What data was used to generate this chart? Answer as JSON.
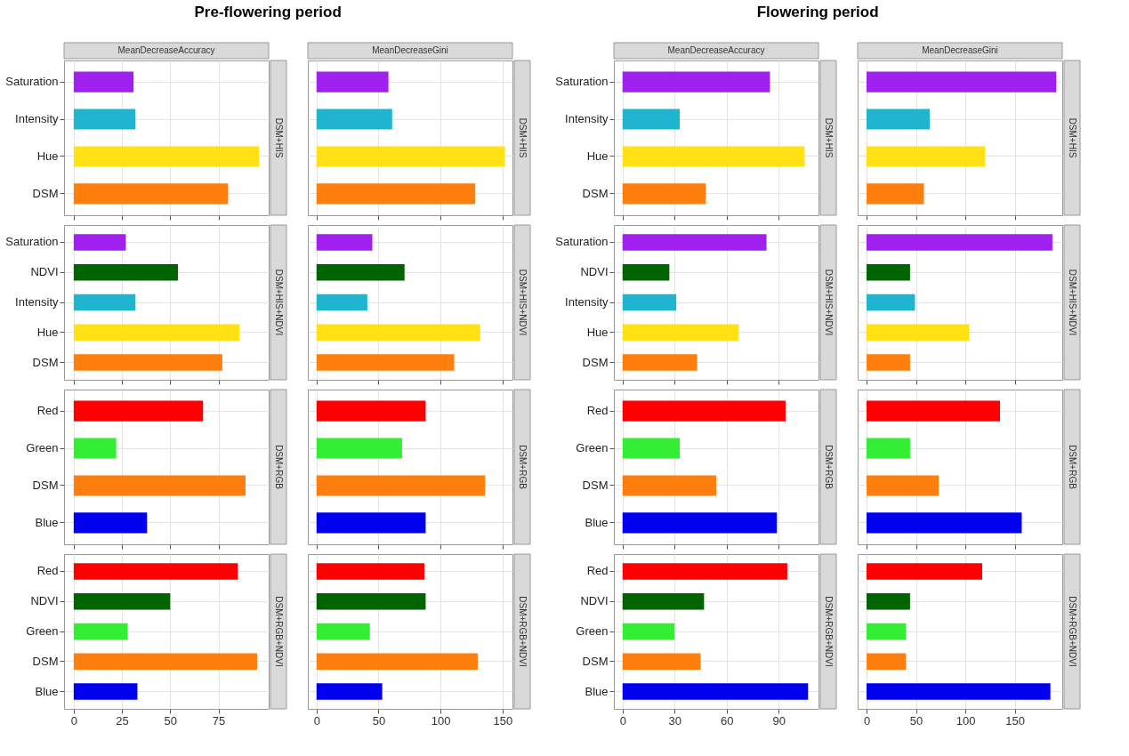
{
  "chart_data": [
    {
      "type": "bar",
      "orientation": "horizontal",
      "title": "Pre-flowering period",
      "subtitle": "MeanDecreaseAccuracy",
      "y2label": "DSM+HIS",
      "categories": [
        "Saturation",
        "Intensity",
        "Hue",
        "DSM"
      ],
      "values": [
        31,
        32,
        96,
        80
      ],
      "colors": [
        "#a020f0",
        "#1fb5d0",
        "#ffe114",
        "#ff7f0e"
      ],
      "xlim": [
        -5,
        101
      ],
      "xticks": [
        0,
        25,
        50,
        75
      ],
      "grid": true,
      "tick_labels": "y"
    },
    {
      "type": "bar",
      "orientation": "horizontal",
      "subtitle": "MeanDecreaseGini",
      "y2label": "DSM+HIS",
      "categories": [
        "Saturation",
        "Intensity",
        "Hue",
        "DSM"
      ],
      "values": [
        58,
        61,
        152,
        128
      ],
      "colors": [
        "#a020f0",
        "#1fb5d0",
        "#ffe114",
        "#ff7f0e"
      ],
      "xlim": [
        -7,
        158
      ],
      "xticks": [
        0,
        50,
        100,
        150
      ],
      "grid": true,
      "tick_labels": false
    },
    {
      "type": "bar",
      "orientation": "horizontal",
      "title": "Flowering period",
      "subtitle": "MeanDecreaseAccuracy",
      "y2label": "DSM+HIS",
      "categories": [
        "Saturation",
        "Intensity",
        "Hue",
        "DSM"
      ],
      "values": [
        85,
        33,
        105,
        48
      ],
      "colors": [
        "#a020f0",
        "#1fb5d0",
        "#ffe114",
        "#ff7f0e"
      ],
      "xlim": [
        -5,
        113
      ],
      "xticks": [
        0,
        30,
        60,
        90
      ],
      "grid": true,
      "tick_labels": "y"
    },
    {
      "type": "bar",
      "orientation": "horizontal",
      "subtitle": "MeanDecreaseGini",
      "y2label": "DSM+HIS",
      "categories": [
        "Saturation",
        "Intensity",
        "Hue",
        "DSM"
      ],
      "values": [
        192,
        64,
        120,
        58
      ],
      "colors": [
        "#a020f0",
        "#1fb5d0",
        "#ffe114",
        "#ff7f0e"
      ],
      "xlim": [
        -9,
        198
      ],
      "xticks": [
        0,
        50,
        100,
        150
      ],
      "grid": true,
      "tick_labels": false
    },
    {
      "type": "bar",
      "orientation": "horizontal",
      "y2label": "DSM+HIS+NDVI",
      "categories": [
        "Saturation",
        "NDVI",
        "Intensity",
        "Hue",
        "DSM"
      ],
      "values": [
        27,
        54,
        32,
        86,
        77
      ],
      "colors": [
        "#a020f0",
        "#006400",
        "#1fb5d0",
        "#ffe114",
        "#ff7f0e"
      ],
      "xlim": [
        -5,
        101
      ],
      "xticks": [
        0,
        25,
        50,
        75
      ],
      "grid": true,
      "tick_labels": "y"
    },
    {
      "type": "bar",
      "orientation": "horizontal",
      "y2label": "DSM+HIS+NDVI",
      "categories": [
        "Saturation",
        "NDVI",
        "Intensity",
        "Hue",
        "DSM"
      ],
      "values": [
        45,
        71,
        41,
        132,
        111
      ],
      "colors": [
        "#a020f0",
        "#006400",
        "#1fb5d0",
        "#ffe114",
        "#ff7f0e"
      ],
      "xlim": [
        -7,
        158
      ],
      "xticks": [
        0,
        50,
        100,
        150
      ],
      "grid": true,
      "tick_labels": false
    },
    {
      "type": "bar",
      "orientation": "horizontal",
      "y2label": "DSM+HIS+NDVI",
      "categories": [
        "Saturation",
        "NDVI",
        "Intensity",
        "Hue",
        "DSM"
      ],
      "values": [
        83,
        27,
        31,
        67,
        43
      ],
      "colors": [
        "#a020f0",
        "#006400",
        "#1fb5d0",
        "#ffe114",
        "#ff7f0e"
      ],
      "xlim": [
        -5,
        113
      ],
      "xticks": [
        0,
        30,
        60,
        90
      ],
      "grid": true,
      "tick_labels": "y"
    },
    {
      "type": "bar",
      "orientation": "horizontal",
      "y2label": "DSM+HIS+NDVI",
      "categories": [
        "Saturation",
        "NDVI",
        "Intensity",
        "Hue",
        "DSM"
      ],
      "values": [
        188,
        44,
        49,
        104,
        44
      ],
      "colors": [
        "#a020f0",
        "#006400",
        "#1fb5d0",
        "#ffe114",
        "#ff7f0e"
      ],
      "xlim": [
        -9,
        198
      ],
      "xticks": [
        0,
        50,
        100,
        150
      ],
      "grid": true,
      "tick_labels": false
    },
    {
      "type": "bar",
      "orientation": "horizontal",
      "y2label": "DSM+RGB",
      "categories": [
        "Red",
        "Green",
        "DSM",
        "Blue"
      ],
      "values": [
        67,
        22,
        89,
        38
      ],
      "colors": [
        "#ff0000",
        "#33ee33",
        "#ff7f0e",
        "#0000ee"
      ],
      "xlim": [
        -5,
        101
      ],
      "xticks": [
        0,
        25,
        50,
        75
      ],
      "grid": true,
      "tick_labels": "y"
    },
    {
      "type": "bar",
      "orientation": "horizontal",
      "y2label": "DSM+RGB",
      "categories": [
        "Red",
        "Green",
        "DSM",
        "Blue"
      ],
      "values": [
        88,
        69,
        136,
        88
      ],
      "colors": [
        "#ff0000",
        "#33ee33",
        "#ff7f0e",
        "#0000ee"
      ],
      "xlim": [
        -7,
        158
      ],
      "xticks": [
        0,
        50,
        100,
        150
      ],
      "grid": true,
      "tick_labels": false
    },
    {
      "type": "bar",
      "orientation": "horizontal",
      "y2label": "DSM+RGB",
      "categories": [
        "Red",
        "Green",
        "DSM",
        "Blue"
      ],
      "values": [
        94,
        33,
        54,
        89
      ],
      "colors": [
        "#ff0000",
        "#33ee33",
        "#ff7f0e",
        "#0000ee"
      ],
      "xlim": [
        -5,
        113
      ],
      "xticks": [
        0,
        30,
        60,
        90
      ],
      "grid": true,
      "tick_labels": "y"
    },
    {
      "type": "bar",
      "orientation": "horizontal",
      "y2label": "DSM+RGB",
      "categories": [
        "Red",
        "Green",
        "DSM",
        "Blue"
      ],
      "values": [
        135,
        44,
        73,
        157
      ],
      "colors": [
        "#ff0000",
        "#33ee33",
        "#ff7f0e",
        "#0000ee"
      ],
      "xlim": [
        -9,
        198
      ],
      "xticks": [
        0,
        50,
        100,
        150
      ],
      "grid": true,
      "tick_labels": false
    },
    {
      "type": "bar",
      "orientation": "horizontal",
      "y2label": "DSM+RGB+NDVI",
      "categories": [
        "Red",
        "NDVI",
        "Green",
        "DSM",
        "Blue"
      ],
      "values": [
        85,
        50,
        28,
        95,
        33
      ],
      "colors": [
        "#ff0000",
        "#006400",
        "#33ee33",
        "#ff7f0e",
        "#0000ee"
      ],
      "xlim": [
        -5,
        101
      ],
      "xticks": [
        0,
        25,
        50,
        75
      ],
      "grid": true
    },
    {
      "type": "bar",
      "orientation": "horizontal",
      "y2label": "DSM+RGB+NDVI",
      "categories": [
        "Red",
        "NDVI",
        "Green",
        "DSM",
        "Blue"
      ],
      "values": [
        87,
        88,
        43,
        130,
        53
      ],
      "colors": [
        "#ff0000",
        "#006400",
        "#33ee33",
        "#ff7f0e",
        "#0000ee"
      ],
      "xlim": [
        -7,
        158
      ],
      "xticks": [
        0,
        50,
        100,
        150
      ],
      "grid": true,
      "tick_labels": "x"
    },
    {
      "type": "bar",
      "orientation": "horizontal",
      "y2label": "DSM+RGB+NDVI",
      "categories": [
        "Red",
        "NDVI",
        "Green",
        "DSM",
        "Blue"
      ],
      "values": [
        95,
        47,
        30,
        45,
        107
      ],
      "colors": [
        "#ff0000",
        "#006400",
        "#33ee33",
        "#ff7f0e",
        "#0000ee"
      ],
      "xlim": [
        -5,
        113
      ],
      "xticks": [
        0,
        30,
        60,
        90
      ],
      "grid": true
    },
    {
      "type": "bar",
      "orientation": "horizontal",
      "y2label": "DSM+RGB+NDVI",
      "categories": [
        "Red",
        "NDVI",
        "Green",
        "DSM",
        "Blue"
      ],
      "values": [
        117,
        44,
        40,
        40,
        186
      ],
      "colors": [
        "#ff0000",
        "#006400",
        "#33ee33",
        "#ff7f0e",
        "#0000ee"
      ],
      "xlim": [
        -9,
        198
      ],
      "xticks": [
        0,
        50,
        100,
        150
      ],
      "grid": true,
      "tick_labels": "x"
    }
  ]
}
